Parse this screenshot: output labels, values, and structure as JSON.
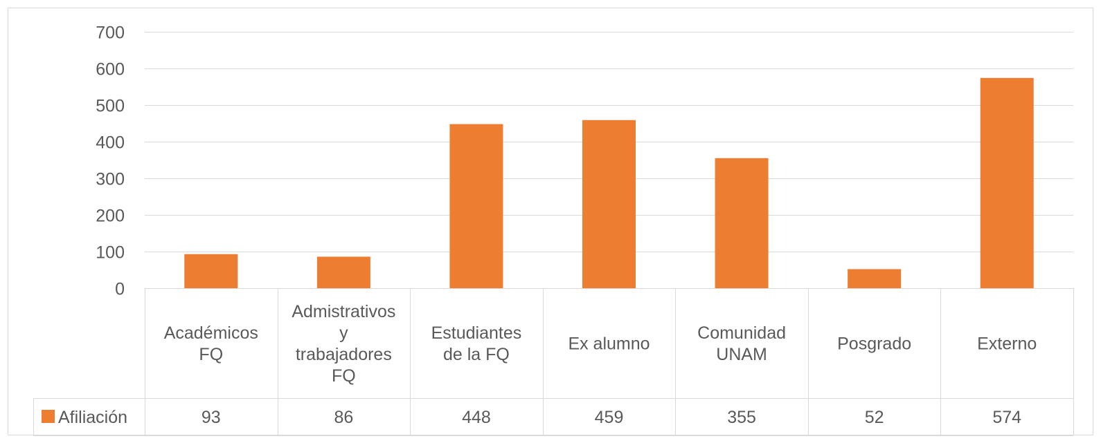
{
  "chart_data": {
    "type": "bar",
    "categories": [
      [
        "Académicos",
        "FQ"
      ],
      [
        "Admistrativos",
        "y",
        "trabajadores",
        "FQ"
      ],
      [
        "Estudiantes",
        "de la FQ"
      ],
      [
        "Ex alumno"
      ],
      [
        "Comunidad",
        "UNAM"
      ],
      [
        "Posgrado"
      ],
      [
        "Externo"
      ]
    ],
    "series": [
      {
        "name": "Afiliación",
        "values": [
          93,
          86,
          448,
          459,
          355,
          52,
          574
        ],
        "color": "#ED7D31"
      }
    ],
    "data_table_values": [
      "93",
      "86",
      "448",
      "459",
      "355",
      "52",
      "574"
    ],
    "ylim": [
      0,
      700
    ],
    "yticks": [
      0,
      100,
      200,
      300,
      400,
      500,
      600,
      700
    ],
    "grid": true,
    "data_table": true,
    "title": "",
    "xlabel": "",
    "ylabel": ""
  }
}
